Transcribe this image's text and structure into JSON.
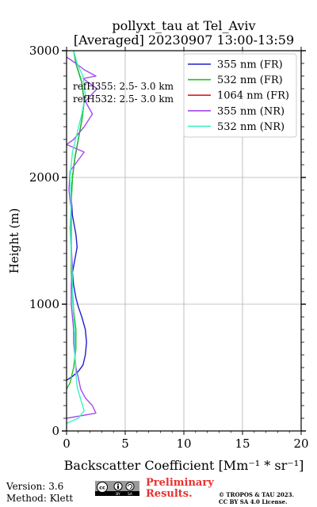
{
  "chart_data": {
    "type": "line",
    "title": [
      "pollyxt_tau at Tel_Aviv",
      "[Averaged] 20230907 13:00-13:59"
    ],
    "xlabel": "Backscatter Coefficient [Mm⁻¹ * sr⁻¹]",
    "ylabel": "Height (m)",
    "xlim": [
      0,
      20
    ],
    "ylim": [
      0,
      3000
    ],
    "x_ticks": [
      0,
      5,
      10,
      15,
      20
    ],
    "y_ticks": [
      0,
      1000,
      2000,
      3000
    ],
    "grid": true,
    "legend_placement": "top-right",
    "annotations": [
      "refH355:  2.5- 3.0 km",
      "refH532:  2.5- 3.0 km"
    ],
    "series": [
      {
        "name": "355 nm (FR)",
        "color": "#1f1fd6",
        "points": [
          [
            0.0,
            400
          ],
          [
            0.5,
            430
          ],
          [
            1.0,
            470
          ],
          [
            1.4,
            520
          ],
          [
            1.6,
            600
          ],
          [
            1.7,
            700
          ],
          [
            1.6,
            800
          ],
          [
            1.3,
            900
          ],
          [
            1.0,
            980
          ],
          [
            0.8,
            1050
          ],
          [
            0.6,
            1150
          ],
          [
            0.5,
            1250
          ],
          [
            0.7,
            1350
          ],
          [
            0.9,
            1450
          ],
          [
            0.8,
            1550
          ],
          [
            0.5,
            1700
          ],
          [
            0.4,
            1850
          ],
          [
            0.5,
            2000
          ],
          [
            0.7,
            2150
          ],
          [
            1.0,
            2300
          ],
          [
            1.3,
            2450
          ],
          [
            1.5,
            2600
          ],
          [
            1.3,
            2750
          ],
          [
            0.8,
            2900
          ],
          [
            0.6,
            3000
          ]
        ]
      },
      {
        "name": "532 nm (FR)",
        "color": "#22c022",
        "points": [
          [
            0.0,
            330
          ],
          [
            0.3,
            380
          ],
          [
            0.6,
            500
          ],
          [
            0.8,
            650
          ],
          [
            0.8,
            800
          ],
          [
            0.6,
            950
          ],
          [
            0.5,
            1100
          ],
          [
            0.4,
            1250
          ],
          [
            0.4,
            1400
          ],
          [
            0.4,
            1600
          ],
          [
            0.4,
            1800
          ],
          [
            0.5,
            2000
          ],
          [
            0.7,
            2150
          ],
          [
            1.0,
            2300
          ],
          [
            1.3,
            2450
          ],
          [
            1.5,
            2600
          ],
          [
            1.3,
            2750
          ],
          [
            0.8,
            2900
          ],
          [
            0.6,
            3000
          ]
        ]
      },
      {
        "name": "1064 nm (FR)",
        "color": "#d62020",
        "points": []
      },
      {
        "name": "355 nm (NR)",
        "color": "#a24bf0",
        "points": [
          [
            0.0,
            100
          ],
          [
            2.5,
            140
          ],
          [
            2.2,
            200
          ],
          [
            1.6,
            260
          ],
          [
            1.2,
            330
          ],
          [
            1.0,
            420
          ],
          [
            0.8,
            500
          ],
          [
            0.7,
            600
          ],
          [
            0.6,
            700
          ],
          [
            0.6,
            800
          ],
          [
            0.5,
            900
          ],
          [
            0.4,
            1000
          ],
          [
            0.4,
            1150
          ],
          [
            0.5,
            1300
          ],
          [
            0.4,
            1450
          ],
          [
            0.3,
            1600
          ],
          [
            0.4,
            1750
          ],
          [
            0.2,
            1900
          ],
          [
            0.3,
            2050
          ],
          [
            1.5,
            2200
          ],
          [
            0.0,
            2260
          ],
          [
            0.6,
            2300
          ],
          [
            1.5,
            2400
          ],
          [
            2.2,
            2500
          ],
          [
            1.6,
            2600
          ],
          [
            2.6,
            2700
          ],
          [
            1.4,
            2780
          ],
          [
            2.5,
            2800
          ],
          [
            1.5,
            2850
          ],
          [
            0.8,
            2900
          ],
          [
            0.0,
            2950
          ]
        ]
      },
      {
        "name": "532 nm (NR)",
        "color": "#40f0c0",
        "points": [
          [
            0.0,
            60
          ],
          [
            1.0,
            100
          ],
          [
            1.5,
            160
          ],
          [
            1.2,
            250
          ],
          [
            0.9,
            350
          ],
          [
            0.8,
            450
          ],
          [
            0.7,
            600
          ],
          [
            0.7,
            750
          ],
          [
            0.6,
            900
          ],
          [
            0.5,
            1050
          ],
          [
            0.5,
            1200
          ],
          [
            0.4,
            1400
          ],
          [
            0.3,
            1600
          ],
          [
            0.4,
            1800
          ],
          [
            0.3,
            2000
          ],
          [
            0.5,
            2200
          ],
          [
            0.9,
            2350
          ],
          [
            1.3,
            2500
          ],
          [
            1.6,
            2650
          ],
          [
            1.4,
            2800
          ],
          [
            0.9,
            2900
          ],
          [
            0.6,
            3000
          ]
        ]
      }
    ]
  },
  "footer": {
    "version": "Version: 3.6",
    "method": "Method: Klett",
    "preliminary_line1": "Preliminary",
    "preliminary_line2": "Results.",
    "copyright_line1": "© TROPOS & TAU 2023.",
    "copyright_line2": "CC BY SA 4.0 License.",
    "license_badge": "cc by sa"
  }
}
